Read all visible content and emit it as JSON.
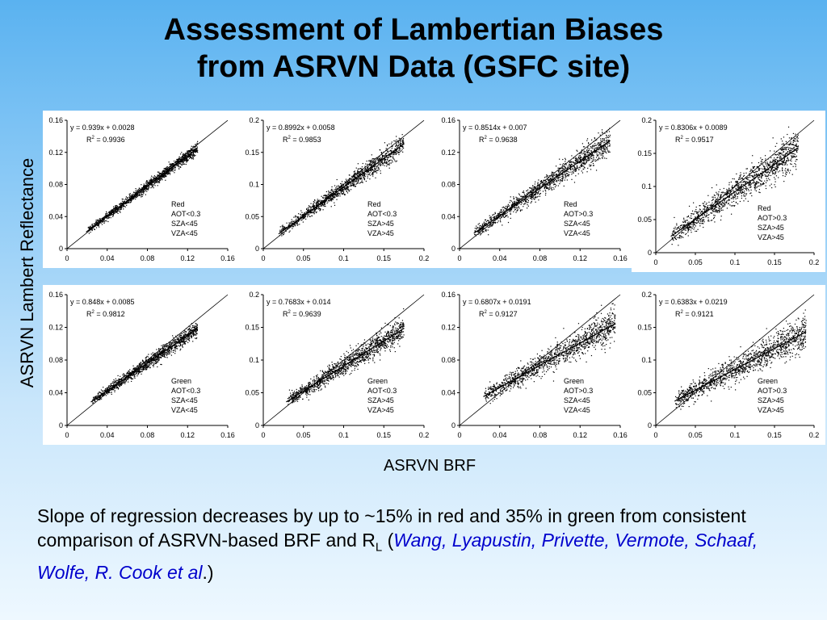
{
  "title": {
    "line1": "Assessment of Lambertian Biases",
    "line2": "from ASRVN Data (GSFC site)"
  },
  "y_axis_label": "ASRVN Lambert Reflectance",
  "x_axis_label": "ASRVN BRF",
  "caption": {
    "text_before": "Slope of regression decreases by up to ~15% in red and 35% in green from consistent comparison of ASRVN-based BRF and R",
    "subscript": "L",
    "open_paren": " (",
    "authors": "Wang, Lyapustin, Privette, Vermote, Schaaf, Wolfe, R. Cook et al",
    "close": ".)"
  },
  "colors": {
    "background_top": "#5ab2f0",
    "background_bottom": "#eef8ff",
    "authors": "#0000cc",
    "points": "#000000"
  },
  "chart_data": [
    {
      "type": "scatter",
      "row": 1,
      "col": 1,
      "equation": "y = 0.939x + 0.0028",
      "r2_label": "R",
      "r2_value": " = 0.9936",
      "slope": 0.939,
      "intercept": 0.0028,
      "r2": 0.9936,
      "annotation": [
        "Red",
        "AOT<0.3",
        "SZA<45",
        "VZA<45"
      ],
      "xlim": [
        0,
        0.16
      ],
      "ylim": [
        0,
        0.16
      ],
      "xticks": [
        "0",
        "0.04",
        "0.08",
        "0.12",
        "0.16"
      ],
      "yticks": [
        "0",
        "0.04",
        "0.08",
        "0.12",
        "0.16"
      ],
      "x_range": [
        0.02,
        0.13
      ],
      "spread": 0.0025,
      "one_to_one_line": true
    },
    {
      "type": "scatter",
      "row": 1,
      "col": 2,
      "equation": "y = 0.8992x + 0.0058",
      "r2_label": "R",
      "r2_value": " = 0.9853",
      "slope": 0.8992,
      "intercept": 0.0058,
      "r2": 0.9853,
      "annotation": [
        "Red",
        "AOT<0.3",
        "SZA>45",
        "VZA>45"
      ],
      "xlim": [
        0,
        0.2
      ],
      "ylim": [
        0,
        0.2
      ],
      "xticks": [
        "0",
        "0.05",
        "0.1",
        "0.15",
        "0.2"
      ],
      "yticks": [
        "0",
        "0.05",
        "0.1",
        "0.15",
        "0.2"
      ],
      "x_range": [
        0.02,
        0.175
      ],
      "spread": 0.005,
      "one_to_one_line": true
    },
    {
      "type": "scatter",
      "row": 1,
      "col": 3,
      "equation": "y = 0.8514x + 0.007",
      "r2_label": "R",
      "r2_value": " = 0.9638",
      "slope": 0.8514,
      "intercept": 0.007,
      "r2": 0.9638,
      "annotation": [
        "Red",
        "AOT>0.3",
        "SZA<45",
        "VZA<45"
      ],
      "xlim": [
        0,
        0.16
      ],
      "ylim": [
        0,
        0.16
      ],
      "xticks": [
        "0",
        "0.04",
        "0.08",
        "0.12",
        "0.16"
      ],
      "yticks": [
        "0",
        "0.04",
        "0.08",
        "0.12",
        "0.16"
      ],
      "x_range": [
        0.015,
        0.15
      ],
      "spread": 0.005,
      "one_to_one_line": true
    },
    {
      "type": "scatter",
      "row": 1,
      "col": 4,
      "equation": "y = 0.8306x + 0.0089",
      "r2_label": "R",
      "r2_value": " = 0.9517",
      "slope": 0.8306,
      "intercept": 0.0089,
      "r2": 0.9517,
      "annotation": [
        "Red",
        "AOT>0.3",
        "SZA>45",
        "VZA>45"
      ],
      "xlim": [
        0,
        0.2
      ],
      "ylim": [
        0,
        0.2
      ],
      "xticks": [
        "0",
        "0.05",
        "0.1",
        "0.15",
        "0.2"
      ],
      "yticks": [
        "0",
        "0.05",
        "0.1",
        "0.15",
        "0.2"
      ],
      "x_range": [
        0.02,
        0.18
      ],
      "spread": 0.009,
      "one_to_one_line": true
    },
    {
      "type": "scatter",
      "row": 2,
      "col": 1,
      "equation": "y = 0.848x + 0.0085",
      "r2_label": "R",
      "r2_value": " = 0.9812",
      "slope": 0.848,
      "intercept": 0.0085,
      "r2": 0.9812,
      "annotation": [
        "Green",
        "AOT<0.3",
        "SZA<45",
        "VZA<45"
      ],
      "xlim": [
        0,
        0.16
      ],
      "ylim": [
        0,
        0.16
      ],
      "xticks": [
        "0",
        "0.04",
        "0.08",
        "0.12",
        "0.16"
      ],
      "yticks": [
        "0",
        "0.04",
        "0.08",
        "0.12",
        "0.16"
      ],
      "x_range": [
        0.025,
        0.13
      ],
      "spread": 0.003,
      "one_to_one_line": true
    },
    {
      "type": "scatter",
      "row": 2,
      "col": 2,
      "equation": "y = 0.7683x + 0.014",
      "r2_label": "R",
      "r2_value": " = 0.9639",
      "slope": 0.7683,
      "intercept": 0.014,
      "r2": 0.9639,
      "annotation": [
        "Green",
        "AOT<0.3",
        "SZA>45",
        "VZA>45"
      ],
      "xlim": [
        0,
        0.2
      ],
      "ylim": [
        0,
        0.2
      ],
      "xticks": [
        "0",
        "0.05",
        "0.1",
        "0.15",
        "0.2"
      ],
      "yticks": [
        "0",
        "0.05",
        "0.1",
        "0.15",
        "0.2"
      ],
      "x_range": [
        0.03,
        0.175
      ],
      "spread": 0.006,
      "one_to_one_line": true
    },
    {
      "type": "scatter",
      "row": 2,
      "col": 3,
      "equation": "y = 0.6807x + 0.0191",
      "r2_label": "R",
      "r2_value": " = 0.9127",
      "slope": 0.6807,
      "intercept": 0.0191,
      "r2": 0.9127,
      "annotation": [
        "Green",
        "AOT>0.3",
        "SZA<45",
        "VZA<45"
      ],
      "xlim": [
        0,
        0.16
      ],
      "ylim": [
        0,
        0.16
      ],
      "xticks": [
        "0",
        "0.04",
        "0.08",
        "0.12",
        "0.16"
      ],
      "yticks": [
        "0",
        "0.04",
        "0.08",
        "0.12",
        "0.16"
      ],
      "x_range": [
        0.025,
        0.155
      ],
      "spread": 0.006,
      "one_to_one_line": true
    },
    {
      "type": "scatter",
      "row": 2,
      "col": 4,
      "equation": "y = 0.6383x + 0.0219",
      "r2_label": "R",
      "r2_value": " = 0.9121",
      "slope": 0.6383,
      "intercept": 0.0219,
      "r2": 0.9121,
      "annotation": [
        "Green",
        "AOT>0.3",
        "SZA>45",
        "VZA>45"
      ],
      "xlim": [
        0,
        0.2
      ],
      "ylim": [
        0,
        0.2
      ],
      "xticks": [
        "0",
        "0.05",
        "0.1",
        "0.15",
        "0.2"
      ],
      "yticks": [
        "0",
        "0.05",
        "0.1",
        "0.15",
        "0.2"
      ],
      "x_range": [
        0.025,
        0.19
      ],
      "spread": 0.008,
      "one_to_one_line": true
    }
  ]
}
